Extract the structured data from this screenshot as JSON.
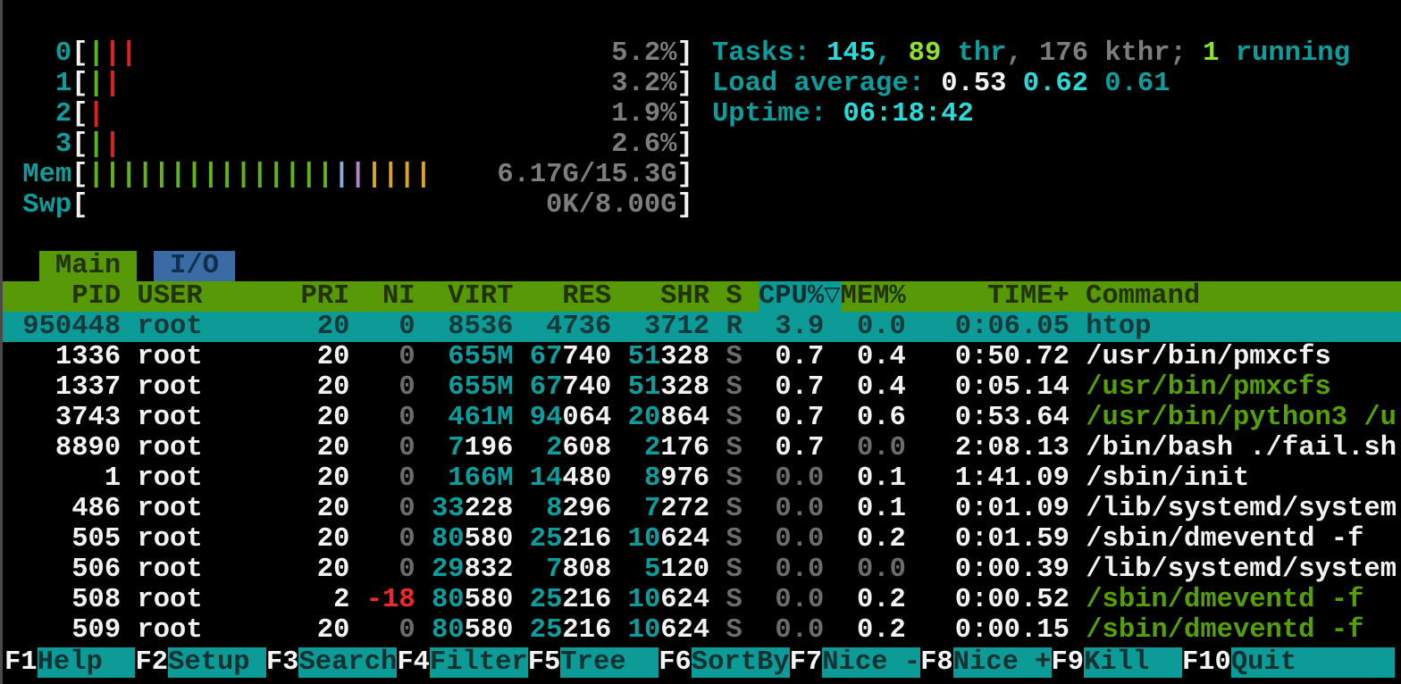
{
  "colors": {
    "accent_teal": "#0d9d9d",
    "bright_cyan": "#2bd9d9",
    "bright_green": "#8ee030",
    "command_green": "#55a008",
    "header_green_bg": "#579906",
    "tab_blue_bg": "#3b6ba5",
    "selection_teal_bg": "#0c9b97",
    "nice_red": "#ef2929",
    "tick_green": "#61b41a",
    "tick_red": "#e02222",
    "tick_blue": "#87a9dc",
    "tick_violet": "#b285c8",
    "tick_yellow": "#daa520"
  },
  "meters": {
    "bar_inner_width": 36,
    "rows": [
      {
        "label": "0",
        "ticks": [
          "green",
          "red",
          "red"
        ],
        "value": "5.2%"
      },
      {
        "label": "1",
        "ticks": [
          "green",
          "red"
        ],
        "value": "3.2%"
      },
      {
        "label": "2",
        "ticks": [
          "red"
        ],
        "value": "1.9%"
      },
      {
        "label": "3",
        "ticks": [
          "green",
          "red"
        ],
        "value": "2.6%"
      },
      {
        "label": "Mem",
        "ticks": [
          "green",
          "green",
          "green",
          "green",
          "green",
          "green",
          "green",
          "green",
          "green",
          "green",
          "green",
          "green",
          "green",
          "green",
          "green",
          "blue",
          "violet",
          "yellow",
          "yellow",
          "yellow",
          "yellow"
        ],
        "value": "6.17G/15.3G"
      },
      {
        "label": "Swp",
        "ticks": [],
        "value": "0K/8.00G"
      }
    ]
  },
  "summary_lines": [
    {
      "name": "tasks-summary",
      "segments": [
        {
          "t": "Tasks: ",
          "c": "teal"
        },
        {
          "t": "145",
          "c": "cyanB"
        },
        {
          "t": ", ",
          "c": "teal"
        },
        {
          "t": "89",
          "c": "greenB"
        },
        {
          "t": " thr",
          "c": "teal"
        },
        {
          "t": ", ",
          "c": "grayc"
        },
        {
          "t": "176",
          "c": "grayc"
        },
        {
          "t": " kthr",
          "c": "grayc"
        },
        {
          "t": "; ",
          "c": "grayc"
        },
        {
          "t": "1",
          "c": "greenB"
        },
        {
          "t": " running",
          "c": "teal"
        }
      ]
    },
    {
      "name": "load-average",
      "segments": [
        {
          "t": "Load average: ",
          "c": "teal"
        },
        {
          "t": "0.53 ",
          "c": "white"
        },
        {
          "t": "0.62 ",
          "c": "cyanB"
        },
        {
          "t": "0.61",
          "c": "teal"
        }
      ]
    },
    {
      "name": "uptime",
      "segments": [
        {
          "t": "Uptime: ",
          "c": "teal"
        },
        {
          "t": "06:18:42",
          "c": "cyanB"
        }
      ]
    }
  ],
  "tabs": [
    {
      "label": "Main",
      "active": true
    },
    {
      "label": "I/O",
      "active": false
    }
  ],
  "table": {
    "header": {
      "pid": "PID",
      "user": "USER",
      "pri": "PRI",
      "ni": "NI",
      "virt": "VIRT",
      "res": "RES",
      "shr": "SHR",
      "s": "S",
      "cpu": "CPU%",
      "sort_arrow": "▽",
      "mem": "MEM%",
      "time": "TIME+",
      "command": "Command"
    },
    "sorted_by": "CPU%",
    "rows": [
      {
        "pid": "950448",
        "user": "root",
        "pri": "20",
        "ni": "0",
        "virt": "8536",
        "res": "4736",
        "shr": "3712",
        "s": "R",
        "cpu": "3.9",
        "mem": "0.0",
        "time": "0:06.05",
        "command": "htop",
        "cmd_color": "white",
        "selected": true
      },
      {
        "pid": "1336",
        "user": "root",
        "pri": "20",
        "ni": "0",
        "virt": "655M",
        "res": "67740",
        "shr": "51328",
        "s": "S",
        "cpu": "0.7",
        "mem": "0.4",
        "time": "0:50.72",
        "command": "/usr/bin/pmxcfs",
        "cmd_color": "white",
        "selected": false
      },
      {
        "pid": "1337",
        "user": "root",
        "pri": "20",
        "ni": "0",
        "virt": "655M",
        "res": "67740",
        "shr": "51328",
        "s": "S",
        "cpu": "0.7",
        "mem": "0.4",
        "time": "0:05.14",
        "command": "/usr/bin/pmxcfs",
        "cmd_color": "green",
        "selected": false
      },
      {
        "pid": "3743",
        "user": "root",
        "pri": "20",
        "ni": "0",
        "virt": "461M",
        "res": "94064",
        "shr": "20864",
        "s": "S",
        "cpu": "0.7",
        "mem": "0.6",
        "time": "0:53.64",
        "command": "/usr/bin/python3 /u",
        "cmd_color": "green",
        "selected": false
      },
      {
        "pid": "8890",
        "user": "root",
        "pri": "20",
        "ni": "0",
        "virt": "7196",
        "res": "2608",
        "shr": "2176",
        "s": "S",
        "cpu": "0.7",
        "mem": "0.0",
        "time": "2:08.13",
        "command": "/bin/bash ./fail.sh",
        "cmd_color": "white",
        "selected": false
      },
      {
        "pid": "1",
        "user": "root",
        "pri": "20",
        "ni": "0",
        "virt": "166M",
        "res": "14480",
        "shr": "8976",
        "s": "S",
        "cpu": "0.0",
        "mem": "0.1",
        "time": "1:41.09",
        "command": "/sbin/init",
        "cmd_color": "white",
        "selected": false
      },
      {
        "pid": "486",
        "user": "root",
        "pri": "20",
        "ni": "0",
        "virt": "33228",
        "res": "8296",
        "shr": "7272",
        "s": "S",
        "cpu": "0.0",
        "mem": "0.1",
        "time": "0:01.09",
        "command": "/lib/systemd/system",
        "cmd_color": "white",
        "selected": false
      },
      {
        "pid": "505",
        "user": "root",
        "pri": "20",
        "ni": "0",
        "virt": "80580",
        "res": "25216",
        "shr": "10624",
        "s": "S",
        "cpu": "0.0",
        "mem": "0.2",
        "time": "0:01.59",
        "command": "/sbin/dmeventd -f",
        "cmd_color": "white",
        "selected": false
      },
      {
        "pid": "506",
        "user": "root",
        "pri": "20",
        "ni": "0",
        "virt": "29832",
        "res": "7808",
        "shr": "5120",
        "s": "S",
        "cpu": "0.0",
        "mem": "0.0",
        "time": "0:00.39",
        "command": "/lib/systemd/system",
        "cmd_color": "white",
        "selected": false
      },
      {
        "pid": "508",
        "user": "root",
        "pri": "2",
        "ni": "-18",
        "virt": "80580",
        "res": "25216",
        "shr": "10624",
        "s": "S",
        "cpu": "0.0",
        "mem": "0.2",
        "time": "0:00.52",
        "command": "/sbin/dmeventd -f",
        "cmd_color": "green",
        "selected": false
      },
      {
        "pid": "509",
        "user": "root",
        "pri": "20",
        "ni": "0",
        "virt": "80580",
        "res": "25216",
        "shr": "10624",
        "s": "S",
        "cpu": "0.0",
        "mem": "0.2",
        "time": "0:00.15",
        "command": "/sbin/dmeventd -f",
        "cmd_color": "green",
        "selected": false
      }
    ]
  },
  "fnbar": [
    {
      "key": "F1",
      "label": "Help"
    },
    {
      "key": "F2",
      "label": "Setup"
    },
    {
      "key": "F3",
      "label": "Search"
    },
    {
      "key": "F4",
      "label": "Filter"
    },
    {
      "key": "F5",
      "label": "Tree"
    },
    {
      "key": "F6",
      "label": "SortBy"
    },
    {
      "key": "F7",
      "label": "Nice -"
    },
    {
      "key": "F8",
      "label": "Nice +"
    },
    {
      "key": "F9",
      "label": "Kill"
    },
    {
      "key": "F10",
      "label": "Quit"
    }
  ]
}
